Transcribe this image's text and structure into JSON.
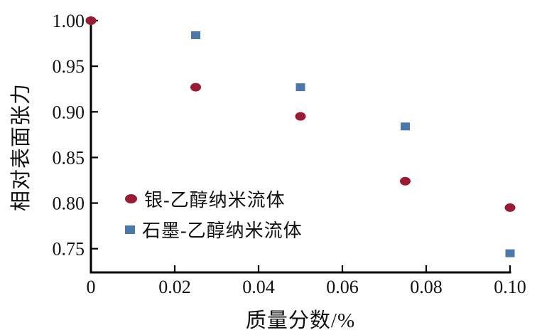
{
  "figure": {
    "background": "#ffffff",
    "axis_color": "#000000",
    "text_color": "#111111"
  },
  "chart_data": {
    "type": "scatter",
    "xlabel": "质量分数/%",
    "ylabel": "相对表面张力",
    "xlim": [
      0,
      0.1
    ],
    "ylim": [
      0.724,
      1.0
    ],
    "xticks": [
      0,
      0.02,
      0.04,
      0.06,
      0.08,
      0.1
    ],
    "xtick_labels": [
      "0",
      "0.02",
      "0.04",
      "0.06",
      "0.08",
      "0.10"
    ],
    "yticks": [
      0.75,
      0.8,
      0.85,
      0.9,
      0.95,
      1.0
    ],
    "ytick_labels": [
      "0.75",
      "0.80",
      "0.85",
      "0.90",
      "0.95",
      "1.00"
    ],
    "grid": false,
    "legend_position": "inside lower-left",
    "series": [
      {
        "name": "银-乙醇纳米流体",
        "marker": "circle",
        "color": "#9b1b33",
        "x": [
          0,
          0.025,
          0.05,
          0.075,
          0.1
        ],
        "y": [
          1.0,
          0.927,
          0.895,
          0.824,
          0.795
        ]
      },
      {
        "name": "石墨-乙醇纳米流体",
        "marker": "square",
        "color": "#4a78ab",
        "x": [
          0.025,
          0.05,
          0.075,
          0.1
        ],
        "y": [
          0.984,
          0.927,
          0.884,
          0.745
        ]
      }
    ]
  }
}
